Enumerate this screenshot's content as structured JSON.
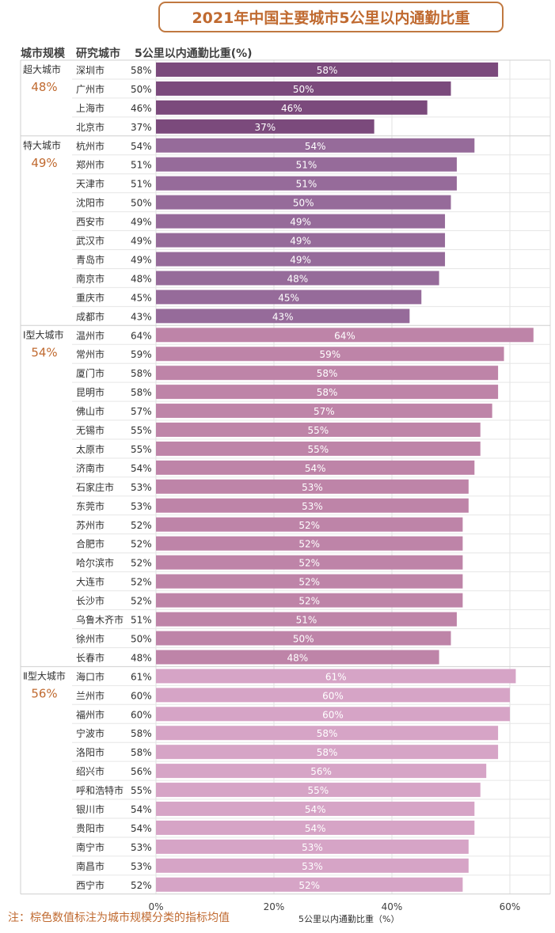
{
  "title": "2021年中国主要城市5公里以内通勤比重",
  "header": {
    "col_scale": "城市规模",
    "col_city": "研究城市",
    "col_value": "5公里以内通勤比重(%)"
  },
  "note": "注：棕色数值标注为城市规模分类的指标均值",
  "colors": {
    "title": "#C06A30",
    "group_avg": "#C06A30",
    "super": "#7B4A7C",
    "mega": "#966B9A",
    "type1": "#BE84A8",
    "type2": "#D6A4C6"
  },
  "chart_data": {
    "type": "bar",
    "orientation": "horizontal",
    "xlabel": "5公里以内通勤比重（%）",
    "xlim": [
      0,
      66
    ],
    "xticks": [
      "0%",
      "20%",
      "40%",
      "60%"
    ],
    "xtick_values": [
      0,
      20,
      40,
      60
    ],
    "grid": true,
    "groups": [
      {
        "name": "超大城市",
        "avg": "48%",
        "color_key": "super",
        "cities": [
          "深圳市",
          "广州市",
          "上海市",
          "北京市"
        ],
        "values": [
          58,
          50,
          46,
          37
        ]
      },
      {
        "name": "特大城市",
        "avg": "49%",
        "color_key": "mega",
        "cities": [
          "杭州市",
          "郑州市",
          "天津市",
          "沈阳市",
          "西安市",
          "武汉市",
          "青岛市",
          "南京市",
          "重庆市",
          "成都市"
        ],
        "values": [
          54,
          51,
          51,
          50,
          49,
          49,
          49,
          48,
          45,
          43
        ]
      },
      {
        "name": "Ⅰ型大城市",
        "avg": "54%",
        "color_key": "type1",
        "cities": [
          "温州市",
          "常州市",
          "厦门市",
          "昆明市",
          "佛山市",
          "无锡市",
          "太原市",
          "济南市",
          "石家庄市",
          "东莞市",
          "苏州市",
          "合肥市",
          "哈尔滨市",
          "大连市",
          "长沙市",
          "乌鲁木齐市",
          "徐州市",
          "长春市"
        ],
        "values": [
          64,
          59,
          58,
          58,
          57,
          55,
          55,
          54,
          53,
          53,
          52,
          52,
          52,
          52,
          52,
          51,
          50,
          48
        ]
      },
      {
        "name": "Ⅱ型大城市",
        "avg": "56%",
        "color_key": "type2",
        "cities": [
          "海口市",
          "兰州市",
          "福州市",
          "宁波市",
          "洛阳市",
          "绍兴市",
          "呼和浩特市",
          "银川市",
          "贵阳市",
          "南宁市",
          "南昌市",
          "西宁市"
        ],
        "values": [
          61,
          60,
          60,
          58,
          58,
          56,
          55,
          54,
          54,
          53,
          53,
          52
        ]
      }
    ]
  }
}
